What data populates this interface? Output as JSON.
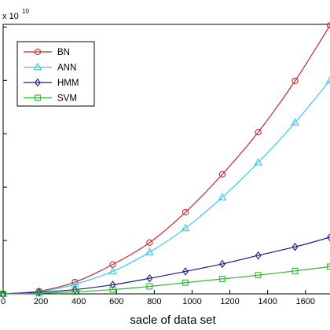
{
  "chart_data": {
    "type": "line",
    "xlabel": "sacle of data set",
    "ylabel": "",
    "x_ticks": [
      "0",
      "200",
      "400",
      "600",
      "800",
      "1000",
      "1200",
      "1400",
      "1600"
    ],
    "xlim": [
      0,
      1730
    ],
    "ylim": [
      0,
      5.05
    ],
    "y_multiplier": "x 10",
    "y_exponent": "10",
    "grid": false,
    "legend_position": "top-left",
    "series": [
      {
        "name": "BN",
        "color": "#c8262e",
        "marker": "circle",
        "x": [
          0,
          190,
          380,
          580,
          775,
          965,
          1160,
          1350,
          1545,
          1730
        ],
        "y": [
          0.0,
          0.05,
          0.22,
          0.55,
          0.96,
          1.53,
          2.24,
          3.03,
          3.99,
          5.03
        ]
      },
      {
        "name": "ANN",
        "color": "#39c9e8",
        "marker": "triangle",
        "x": [
          0,
          190,
          380,
          580,
          775,
          965,
          1160,
          1350,
          1545,
          1730
        ],
        "y": [
          0.0,
          0.04,
          0.18,
          0.42,
          0.78,
          1.23,
          1.81,
          2.46,
          3.21,
          4.0
        ]
      },
      {
        "name": "HMM",
        "color": "#1a1a8c",
        "marker": "diamond",
        "x": [
          0,
          190,
          380,
          580,
          775,
          965,
          1160,
          1350,
          1545,
          1730
        ],
        "y": [
          0.0,
          0.03,
          0.08,
          0.17,
          0.29,
          0.42,
          0.56,
          0.72,
          0.88,
          1.06
        ]
      },
      {
        "name": "SVM",
        "color": "#2db82d",
        "marker": "square",
        "x": [
          0,
          190,
          380,
          580,
          775,
          965,
          1160,
          1350,
          1545,
          1730
        ],
        "y": [
          0.0,
          0.01,
          0.04,
          0.08,
          0.14,
          0.21,
          0.28,
          0.35,
          0.43,
          0.51
        ]
      }
    ]
  }
}
